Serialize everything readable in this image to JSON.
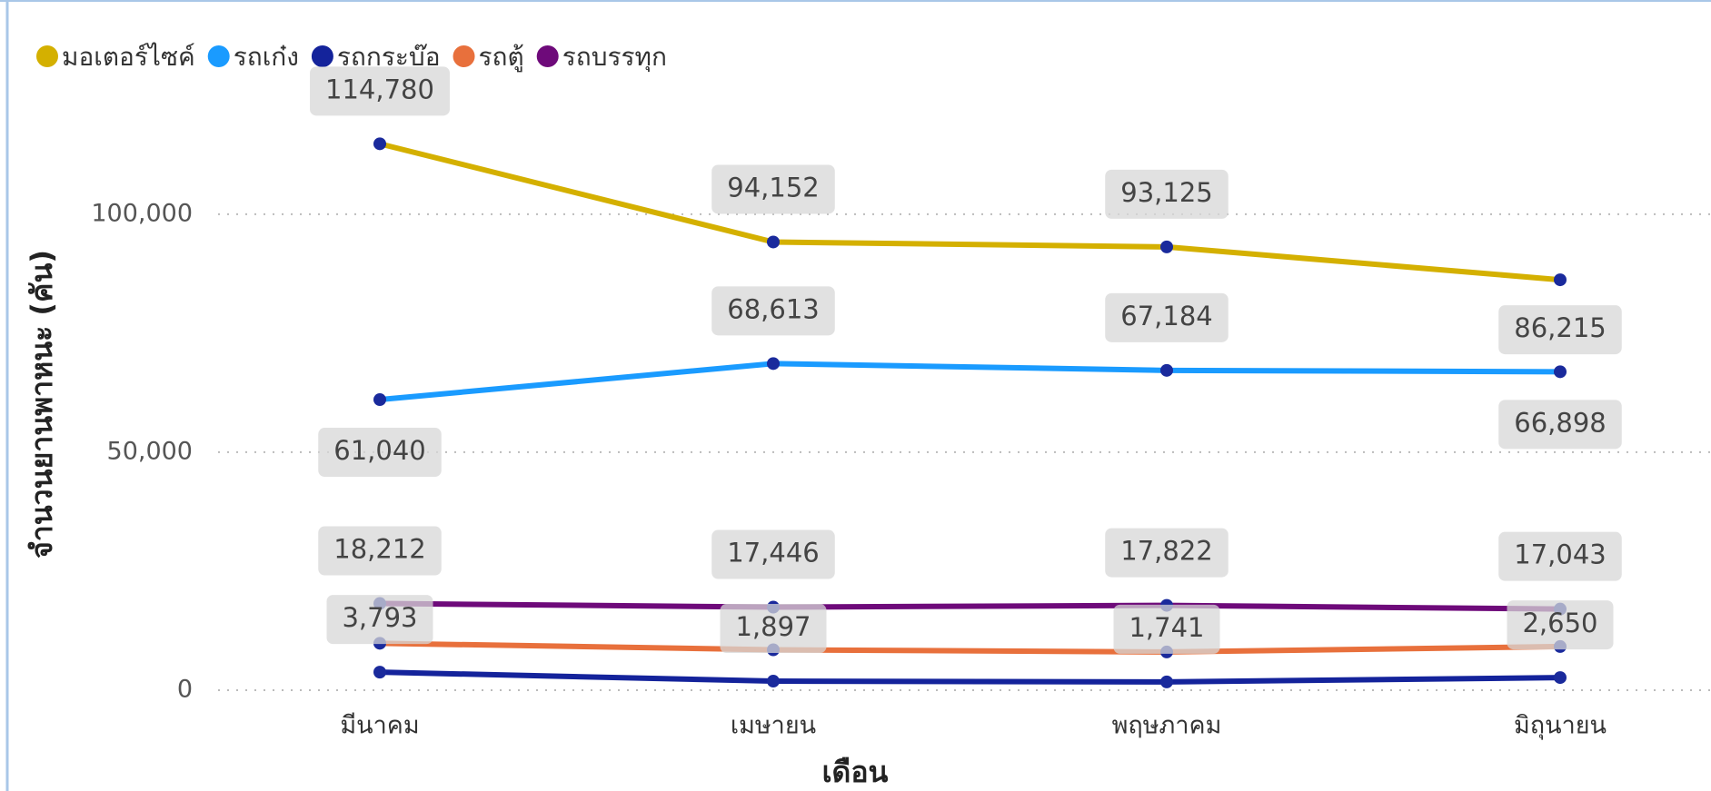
{
  "chart_data": {
    "type": "line",
    "x_label": "เดือน",
    "y_label": "จำนวนยานพาหนะ (คัน)",
    "categories": [
      "มีนาคม",
      "เมษายน",
      "พฤษภาคม",
      "มิถุนายน"
    ],
    "ylim": [
      0,
      120000
    ],
    "yticks": [
      {
        "value": 0,
        "label": "0"
      },
      {
        "value": 50000,
        "label": "50,000"
      },
      {
        "value": 100000,
        "label": "100,000"
      }
    ],
    "grid": true,
    "legend": "top-left",
    "marker_color": "#1a2a9c",
    "series": [
      {
        "name": "มอเตอร์ไซค์",
        "color": "#d4b000",
        "values": [
          114780,
          94152,
          93125,
          86215
        ],
        "value_labels": [
          "114,780",
          "94,152",
          "93,125",
          "86,215"
        ]
      },
      {
        "name": "รถเก๋ง",
        "color": "#1a9bff",
        "values": [
          61040,
          68613,
          67184,
          66898
        ],
        "value_labels": [
          "61,040",
          "68,613",
          "67,184",
          "66,898"
        ]
      },
      {
        "name": "รถกระบ๊อ",
        "color": "#14239b",
        "values": [
          3793,
          1897,
          1741,
          2650
        ],
        "value_labels": [
          "3,793",
          "1,897",
          "1,741",
          "2,650"
        ]
      },
      {
        "name": "รถตู้",
        "color": "#e8703c",
        "values": [
          9860,
          8490,
          8030,
          9170
        ]
      },
      {
        "name": "รถบรรทุก",
        "color": "#6e0a7a",
        "values": [
          18212,
          17446,
          17822,
          17043
        ],
        "value_labels": [
          "18,212",
          "17,446",
          "17,822",
          "17,043"
        ]
      }
    ]
  }
}
